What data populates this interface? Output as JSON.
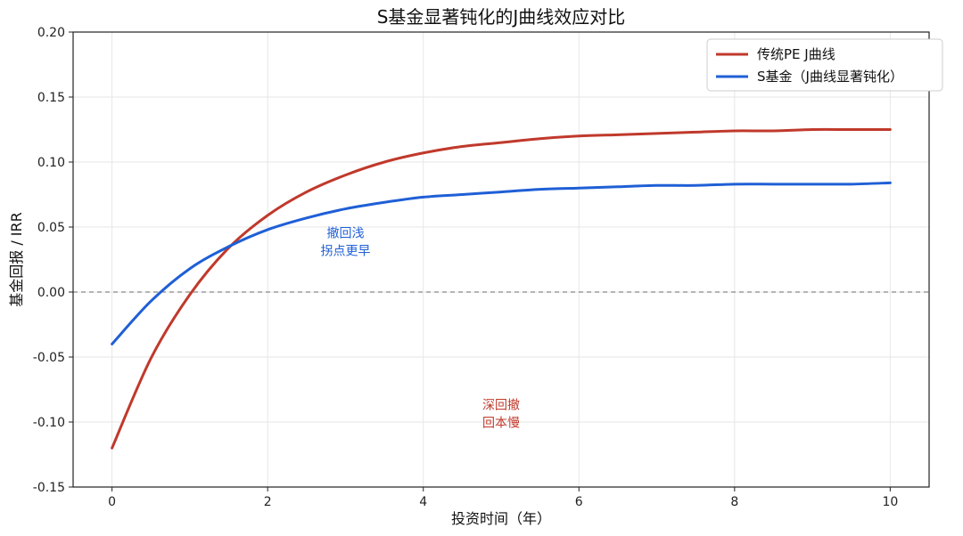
{
  "chart_data": {
    "type": "line",
    "title": "S基金显著钝化的J曲线效应对比",
    "xlabel": "投资时间（年）",
    "ylabel": "基金回报 / IRR",
    "xlim": [
      -0.5,
      10.5
    ],
    "ylim": [
      -0.15,
      0.2
    ],
    "xticks": [
      0,
      2,
      4,
      6,
      8,
      10
    ],
    "xtick_labels": [
      "0",
      "2",
      "4",
      "6",
      "8",
      "10"
    ],
    "yticks": [
      -0.15,
      -0.1,
      -0.05,
      0.0,
      0.05,
      0.1,
      0.15,
      0.2
    ],
    "ytick_labels": [
      "-0.15",
      "-0.10",
      "-0.05",
      "0.00",
      "0.05",
      "0.10",
      "0.15",
      "0.20"
    ],
    "grid": true,
    "legend_position": "top-right",
    "reference_line": {
      "y": 0.0,
      "style": "dashed",
      "color": "#888888"
    },
    "series": [
      {
        "name": "传统PE J曲线",
        "color": "#c0392b",
        "x": [
          0,
          0.5,
          1,
          1.5,
          2,
          2.5,
          3,
          3.5,
          4,
          4.5,
          5,
          5.5,
          6,
          6.5,
          7,
          7.5,
          8,
          8.5,
          9,
          9.5,
          10
        ],
        "y": [
          -0.12,
          -0.051,
          -0.002,
          0.034,
          0.059,
          0.077,
          0.09,
          0.1,
          0.107,
          0.112,
          0.115,
          0.118,
          0.12,
          0.121,
          0.122,
          0.123,
          0.124,
          0.124,
          0.125,
          0.125,
          0.125
        ]
      },
      {
        "name": "S基金（J曲线显著钝化）",
        "color": "#1f5fd6",
        "x": [
          0,
          0.5,
          1,
          1.5,
          2,
          2.5,
          3,
          3.5,
          4,
          4.5,
          5,
          5.5,
          6,
          6.5,
          7,
          7.5,
          8,
          8.5,
          9,
          9.5,
          10
        ],
        "y": [
          -0.04,
          -0.007,
          0.018,
          0.035,
          0.048,
          0.057,
          0.064,
          0.069,
          0.073,
          0.075,
          0.077,
          0.079,
          0.08,
          0.081,
          0.082,
          0.082,
          0.083,
          0.083,
          0.083,
          0.083,
          0.084
        ]
      }
    ],
    "annotations": [
      {
        "lines": [
          "撤回浅",
          "拐点更早"
        ],
        "x": 3.0,
        "y": 0.042,
        "color": "#1f5fd6"
      },
      {
        "lines": [
          "深回撤",
          "回本慢"
        ],
        "x": 5.0,
        "y": -0.09,
        "color": "#c0392b"
      }
    ]
  }
}
